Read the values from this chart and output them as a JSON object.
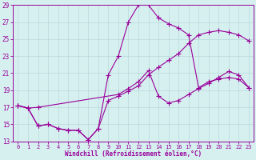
{
  "line1_x": [
    0,
    1,
    2,
    10,
    11,
    12,
    13,
    14,
    15,
    16,
    17,
    18,
    19,
    20,
    21,
    22,
    23
  ],
  "line1_y": [
    17.2,
    16.9,
    17.0,
    18.5,
    19.2,
    20.0,
    21.3,
    18.3,
    17.5,
    17.8,
    18.5,
    19.2,
    19.8,
    20.5,
    21.2,
    20.8,
    19.3
  ],
  "line2_x": [
    0,
    1,
    2,
    3,
    4,
    5,
    6,
    7,
    8,
    9,
    10,
    11,
    12,
    13,
    14,
    15,
    16,
    17,
    18,
    19,
    20,
    21,
    22,
    23
  ],
  "line2_y": [
    17.2,
    16.9,
    14.8,
    15.0,
    14.5,
    14.3,
    14.3,
    13.2,
    14.5,
    20.8,
    23.0,
    27.0,
    29.0,
    29.0,
    27.5,
    26.8,
    26.3,
    25.5,
    19.3,
    20.0,
    20.3,
    20.5,
    20.3,
    19.3
  ],
  "line3_x": [
    0,
    1,
    2,
    3,
    4,
    5,
    6,
    7,
    8,
    9,
    10,
    11,
    12,
    13,
    14,
    15,
    16,
    17,
    18,
    19,
    20,
    21,
    22,
    23
  ],
  "line3_y": [
    17.2,
    16.9,
    14.8,
    15.0,
    14.5,
    14.3,
    14.3,
    13.2,
    14.5,
    17.8,
    18.3,
    18.9,
    19.5,
    20.8,
    21.7,
    22.5,
    23.3,
    24.5,
    25.5,
    25.8,
    26.0,
    25.8,
    25.5,
    24.8
  ],
  "color": "#990099",
  "bg_color": "#d6f0f0",
  "grid_color": "#b8d8d8",
  "xlabel": "Windchill (Refroidissement éolien,°C)",
  "xlim_min": -0.5,
  "xlim_max": 23.5,
  "ylim_min": 13,
  "ylim_max": 29,
  "yticks": [
    13,
    15,
    17,
    19,
    21,
    23,
    25,
    27,
    29
  ],
  "xticks": [
    0,
    1,
    2,
    3,
    4,
    5,
    6,
    7,
    8,
    9,
    10,
    11,
    12,
    13,
    14,
    15,
    16,
    17,
    18,
    19,
    20,
    21,
    22,
    23
  ],
  "markersize": 2.0,
  "linewidth": 0.8,
  "xlabel_fontsize": 5.5,
  "tick_fontsize": 5.0
}
